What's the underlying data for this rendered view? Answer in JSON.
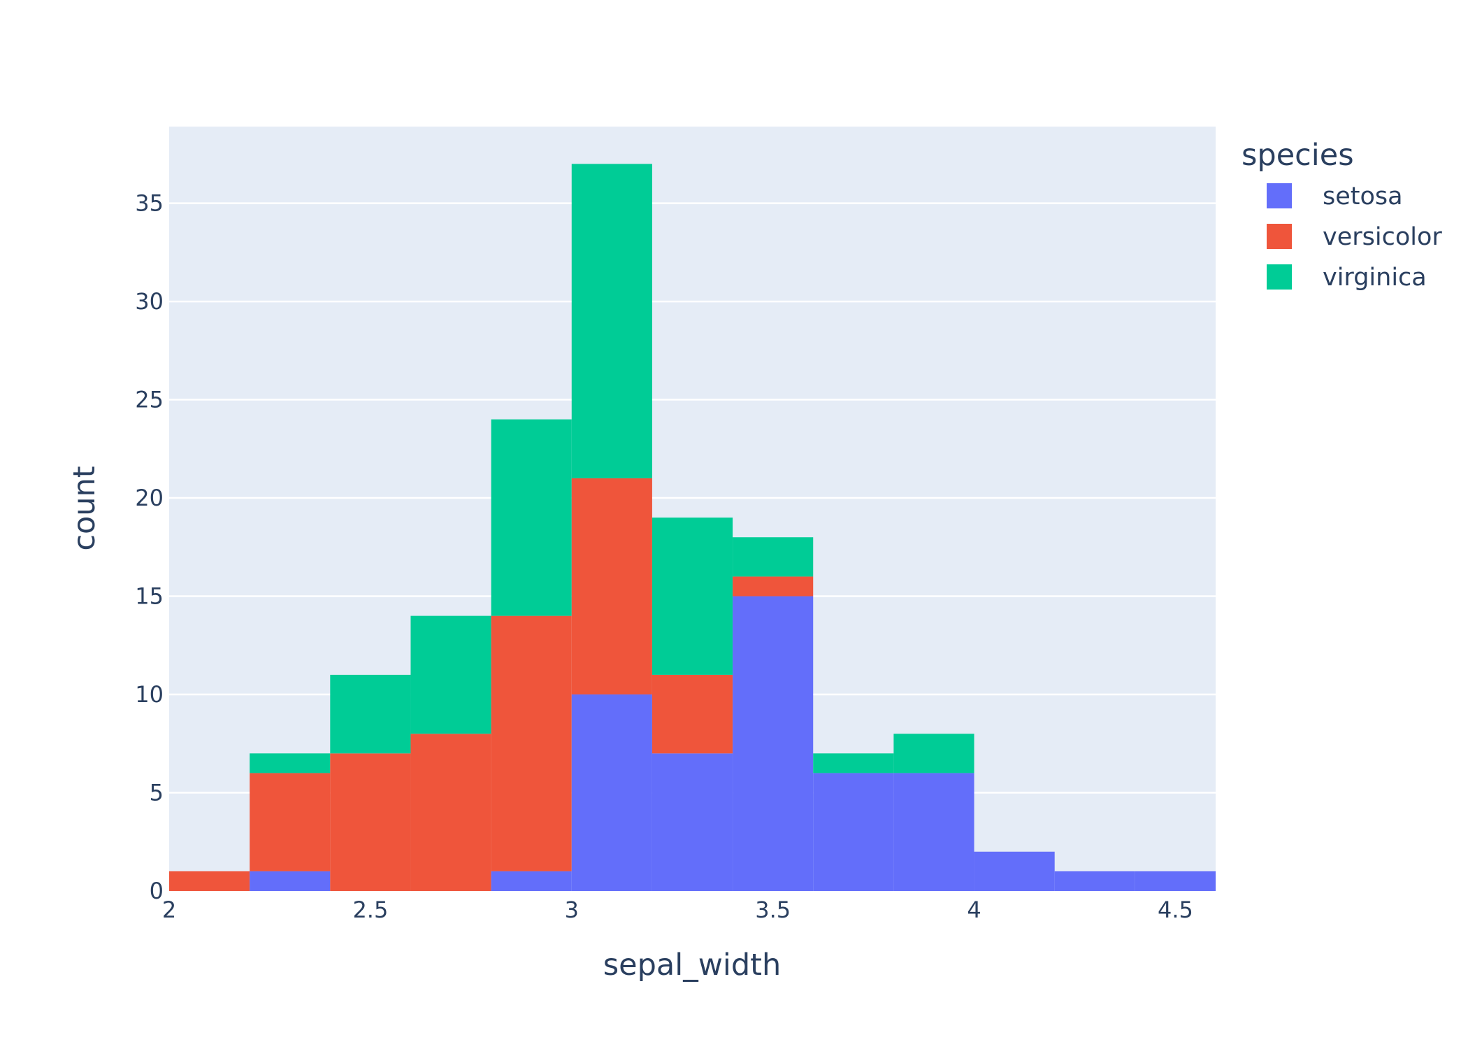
{
  "chart_data": {
    "type": "bar",
    "subtype": "stacked-histogram",
    "xlabel": "sepal_width",
    "ylabel": "count",
    "xlim": [
      2,
      4.6
    ],
    "ylim": [
      0,
      38.9
    ],
    "bin_width": 0.2,
    "x": [
      2.1,
      2.3,
      2.5,
      2.7,
      2.9,
      3.1,
      3.3,
      3.5,
      3.7,
      3.9,
      4.1,
      4.3,
      4.5
    ],
    "x_ticks": [
      2,
      2.5,
      3,
      3.5,
      4,
      4.5
    ],
    "x_tick_labels": [
      "2",
      "2.5",
      "3",
      "3.5",
      "4",
      "4.5"
    ],
    "y_ticks": [
      0,
      5,
      10,
      15,
      20,
      25,
      30,
      35
    ],
    "y_tick_labels": [
      "0",
      "5",
      "10",
      "15",
      "20",
      "25",
      "30",
      "35"
    ],
    "grid": true,
    "legend": {
      "title": "species",
      "placement": "right"
    },
    "series": [
      {
        "name": "setosa",
        "color": "#636efa",
        "values": [
          0,
          1,
          0,
          0,
          1,
          10,
          7,
          15,
          6,
          6,
          2,
          1,
          1
        ]
      },
      {
        "name": "versicolor",
        "color": "#ef553b",
        "values": [
          1,
          5,
          7,
          8,
          13,
          11,
          4,
          1,
          0,
          0,
          0,
          0,
          0
        ]
      },
      {
        "name": "virginica",
        "color": "#00cc96",
        "values": [
          0,
          1,
          4,
          6,
          10,
          16,
          8,
          2,
          1,
          2,
          0,
          0,
          0
        ]
      }
    ],
    "background_color": "#e5ecf6",
    "gridline_color": "#ffffff"
  }
}
